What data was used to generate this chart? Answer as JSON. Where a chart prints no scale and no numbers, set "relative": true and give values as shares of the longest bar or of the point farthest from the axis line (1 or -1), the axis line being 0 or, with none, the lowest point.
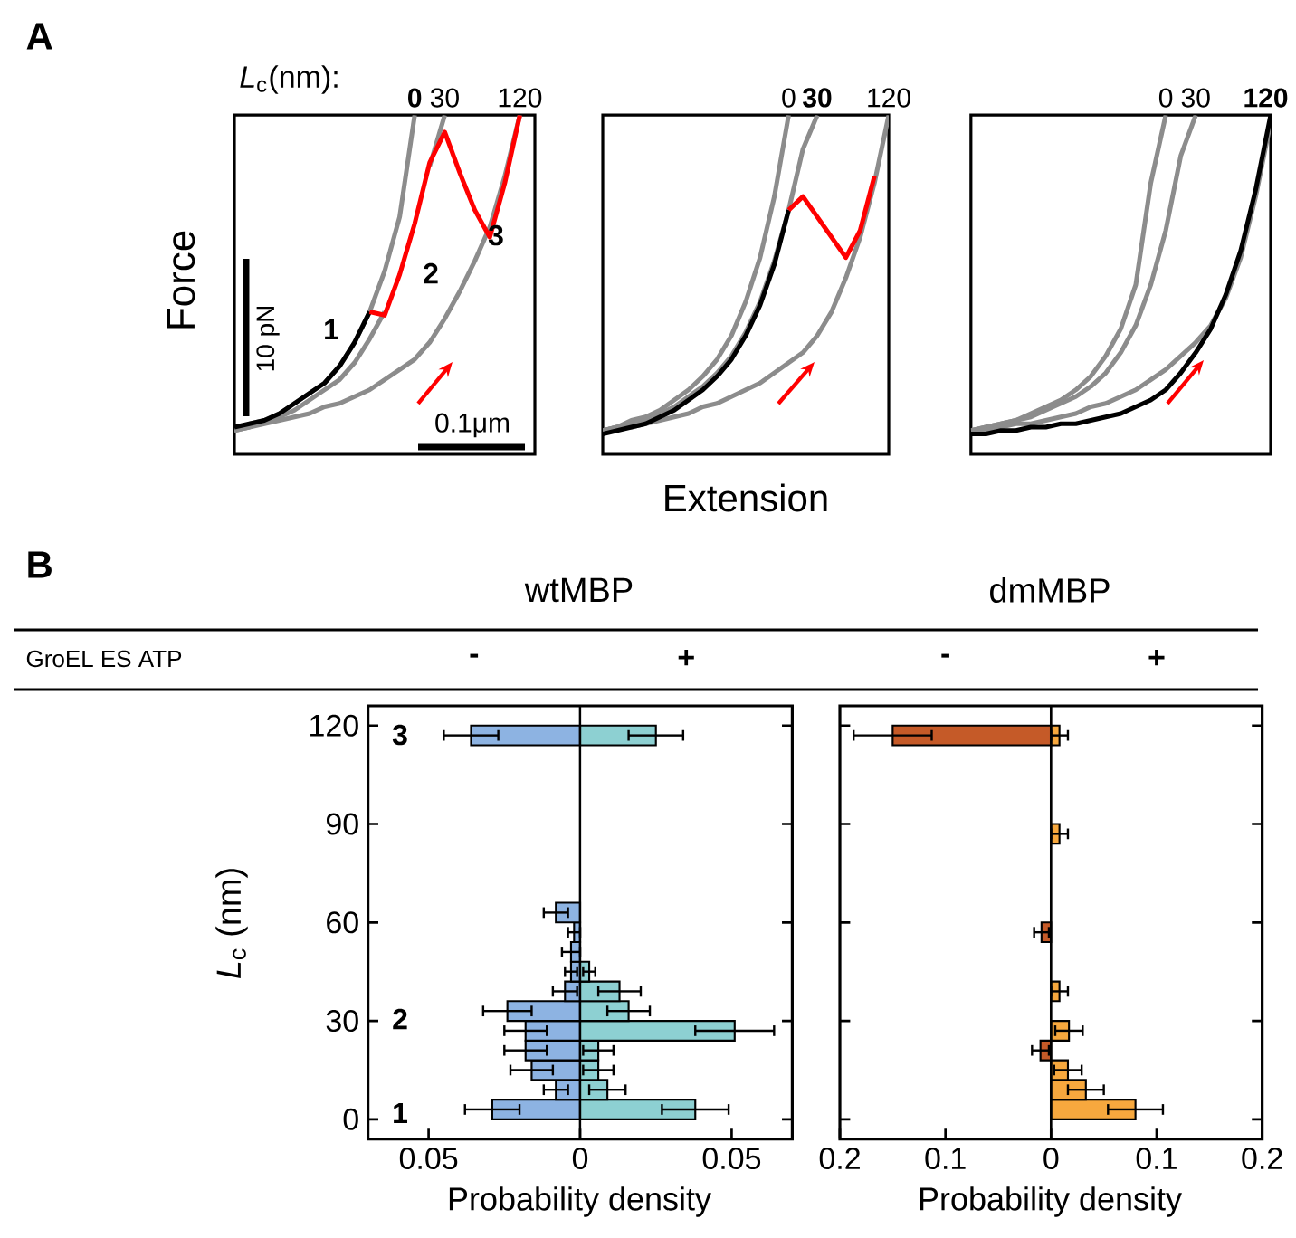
{
  "chart_data": [
    {
      "type": "line",
      "relative": true,
      "ylabel": "Force",
      "categories": [
        null,
        null,
        null,
        null,
        null,
        null,
        null,
        null,
        null,
        null,
        null,
        null,
        null,
        null,
        null,
        null,
        null,
        null,
        null,
        null,
        null
      ],
      "annotations": [
        "A",
        "*L*$_{c}$(nm):",
        "1",
        "2",
        "3",
        "10 pN",
        "0.1μm"
      ],
      "series": [
        {
          "name": "**0**",
          "color": "#8c8c8c",
          "values": [
            0.07,
            0.09,
            0.1,
            0.12,
            0.15,
            0.18,
            0.21,
            0.26,
            0.33,
            0.42,
            0.54,
            0.7,
            1.0,
            null,
            null,
            null,
            null,
            null,
            null,
            null,
            null
          ]
        },
        {
          "name": "30",
          "color": "#8c8c8c",
          "values": [
            0.07,
            0.08,
            0.1,
            0.11,
            0.13,
            0.16,
            0.19,
            0.22,
            0.27,
            0.34,
            0.42,
            null,
            null,
            0.85,
            1.0,
            null,
            null,
            null,
            null,
            null,
            null
          ]
        },
        {
          "name": "120",
          "color": "#8c8c8c",
          "values": [
            0.07,
            0.08,
            0.09,
            0.1,
            0.11,
            0.12,
            0.14,
            0.15,
            0.17,
            0.19,
            0.22,
            0.25,
            0.28,
            0.33,
            0.4,
            0.48,
            0.57,
            0.67,
            0.82,
            1.0,
            null
          ]
        },
        {
          "color": "#000000",
          "values": [
            0.08,
            0.09,
            0.1,
            0.12,
            0.15,
            0.18,
            0.21,
            0.26,
            0.33,
            0.42,
            null,
            null,
            null,
            null,
            null,
            null,
            null,
            null,
            null,
            null,
            null
          ]
        },
        {
          "color": "#ff0000",
          "values": [
            null,
            null,
            null,
            null,
            null,
            null,
            null,
            null,
            null,
            0.42,
            0.41,
            0.53,
            0.68,
            0.86,
            0.95,
            0.83,
            0.72,
            0.64,
            0.8,
            1.0,
            null
          ]
        }
      ]
    },
    {
      "type": "line",
      "relative": true,
      "xlabel": "Extension",
      "categories": [
        null,
        null,
        null,
        null,
        null,
        null,
        null,
        null,
        null,
        null,
        null,
        null,
        null,
        null,
        null,
        null,
        null,
        null,
        null,
        null,
        null
      ],
      "series": [
        {
          "name": "0",
          "color": "#8c8c8c",
          "values": [
            0.07,
            0.08,
            0.1,
            0.11,
            0.13,
            0.16,
            0.19,
            0.23,
            0.28,
            0.35,
            0.45,
            0.58,
            0.76,
            1.0,
            null,
            null,
            null,
            null,
            null,
            null,
            null
          ]
        },
        {
          "name": "**30**",
          "color": "#8c8c8c",
          "values": [
            0.07,
            0.08,
            0.09,
            0.1,
            0.12,
            0.14,
            0.17,
            0.2,
            0.24,
            0.29,
            0.36,
            0.45,
            0.57,
            0.72,
            0.9,
            1.0,
            null,
            null,
            null,
            null,
            null
          ]
        },
        {
          "name": "120",
          "color": "#8c8c8c",
          "values": [
            0.07,
            0.08,
            0.08,
            0.09,
            0.1,
            0.11,
            0.12,
            0.14,
            0.15,
            0.17,
            0.19,
            0.21,
            0.24,
            0.27,
            0.3,
            0.35,
            0.42,
            0.52,
            0.64,
            0.8,
            1.0
          ]
        },
        {
          "color": "#000000",
          "values": [
            0.06,
            0.07,
            0.08,
            0.09,
            0.11,
            0.13,
            0.16,
            0.19,
            0.23,
            0.28,
            0.35,
            0.44,
            0.56,
            0.72,
            null,
            null,
            null,
            null,
            null,
            null,
            null
          ]
        },
        {
          "color": "#ff0000",
          "values": [
            null,
            null,
            null,
            null,
            null,
            null,
            null,
            null,
            null,
            null,
            null,
            null,
            null,
            0.72,
            0.76,
            0.7,
            0.64,
            0.58,
            0.66,
            0.82,
            null
          ]
        }
      ]
    },
    {
      "type": "line",
      "relative": true,
      "categories": [
        null,
        null,
        null,
        null,
        null,
        null,
        null,
        null,
        null,
        null,
        null,
        null,
        null,
        null,
        null,
        null,
        null,
        null,
        null,
        null,
        null
      ],
      "series": [
        {
          "name": "0",
          "color": "#8c8c8c",
          "values": [
            0.07,
            0.08,
            0.09,
            0.1,
            0.12,
            0.14,
            0.16,
            0.19,
            0.23,
            0.29,
            0.37,
            0.5,
            0.8,
            1.0,
            null,
            null,
            null,
            null,
            null,
            null,
            null
          ]
        },
        {
          "name": "30",
          "color": "#8c8c8c",
          "values": [
            0.07,
            0.08,
            0.09,
            0.1,
            0.11,
            0.13,
            0.15,
            0.17,
            0.2,
            0.24,
            0.3,
            0.38,
            0.5,
            0.66,
            0.88,
            1.0,
            null,
            null,
            null,
            null,
            null
          ]
        },
        {
          "name": "**120**",
          "color": "#8c8c8c",
          "values": [
            0.07,
            0.07,
            0.08,
            0.09,
            0.09,
            0.1,
            0.11,
            0.12,
            0.14,
            0.15,
            0.17,
            0.19,
            0.22,
            0.25,
            0.29,
            0.33,
            0.38,
            0.46,
            0.58,
            0.76,
            0.98
          ]
        },
        {
          "color": "#000000",
          "values": [
            0.06,
            0.06,
            0.07,
            0.07,
            0.08,
            0.08,
            0.09,
            0.09,
            0.1,
            0.11,
            0.12,
            0.14,
            0.16,
            0.19,
            0.24,
            0.3,
            0.37,
            0.47,
            0.6,
            0.78,
            1.0
          ]
        }
      ]
    },
    {
      "type": "bar",
      "orientation": "horizontal",
      "title": "wtMBP",
      "xlabel": "Probability density",
      "ylabel": "*L*$_{c}$ (nm)",
      "x": [
        3,
        9,
        15,
        21,
        27,
        33,
        39,
        45,
        51,
        57,
        63,
        69,
        75,
        81,
        87,
        93,
        99,
        105,
        111,
        117
      ],
      "xlim": [
        -0.07,
        0.07
      ],
      "xticks": [
        {
          "value": -0.05,
          "label": "0.05"
        },
        0,
        0.05
      ],
      "ylim": [
        -6,
        126
      ],
      "yticks": [
        0,
        30,
        60,
        90,
        120
      ],
      "ref_lines": [
        {
          "axis": "x",
          "value": 0,
          "color": "#000000"
        }
      ],
      "annotations": [
        "B",
        "GroEL ES ATP",
        "-",
        "+",
        "1",
        "2",
        "3"
      ],
      "series": [
        {
          "color": "#8db3e2",
          "values": [
            -0.029,
            -0.008,
            -0.016,
            -0.018,
            -0.018,
            -0.024,
            -0.005,
            -0.003,
            -0.003,
            -0.002,
            -0.008,
            null,
            null,
            null,
            null,
            null,
            null,
            null,
            null,
            -0.036
          ],
          "errors": [
            0.009,
            0.004,
            0.007,
            0.007,
            0.007,
            0.008,
            0.004,
            0.002,
            0.003,
            0.002,
            0.004,
            null,
            null,
            null,
            null,
            null,
            null,
            null,
            null,
            0.009
          ]
        },
        {
          "color": "#8dd0d2",
          "values": [
            0.038,
            0.009,
            0.006,
            0.006,
            0.051,
            0.016,
            0.013,
            0.003,
            null,
            null,
            null,
            null,
            null,
            null,
            null,
            null,
            null,
            null,
            null,
            0.025
          ],
          "errors": [
            0.011,
            0.006,
            0.005,
            0.005,
            0.013,
            0.007,
            0.007,
            0.002,
            null,
            null,
            null,
            null,
            null,
            null,
            null,
            null,
            null,
            null,
            null,
            0.009
          ]
        }
      ]
    },
    {
      "type": "bar",
      "orientation": "horizontal",
      "title": "dmMBP",
      "xlabel": "Probability density",
      "tick_labels": "x",
      "x": [
        3,
        9,
        15,
        21,
        27,
        33,
        39,
        45,
        51,
        57,
        63,
        69,
        75,
        81,
        87,
        93,
        99,
        105,
        111,
        117
      ],
      "xlim": [
        -0.2,
        0.2
      ],
      "xticks": [
        {
          "value": -0.2,
          "label": "0.2"
        },
        {
          "value": -0.1,
          "label": "0.1"
        },
        0,
        0.1,
        0.2
      ],
      "ylim": [
        -6,
        126
      ],
      "yticks": [
        0,
        30,
        60,
        90,
        120
      ],
      "ref_lines": [
        {
          "axis": "x",
          "value": 0,
          "color": "#000000"
        }
      ],
      "annotations": [
        "-",
        "+"
      ],
      "series": [
        {
          "color": "#c55a28",
          "values": [
            null,
            null,
            null,
            -0.01,
            null,
            null,
            null,
            null,
            null,
            -0.009,
            null,
            null,
            null,
            null,
            null,
            null,
            null,
            null,
            null,
            -0.15
          ],
          "errors": [
            null,
            null,
            null,
            0.008,
            null,
            null,
            null,
            null,
            null,
            0.007,
            null,
            null,
            null,
            null,
            null,
            null,
            null,
            null,
            null,
            0.037
          ]
        },
        {
          "color": "#f7a83e",
          "values": [
            0.08,
            0.033,
            0.016,
            null,
            0.017,
            null,
            0.008,
            null,
            null,
            null,
            null,
            null,
            null,
            null,
            0.008,
            null,
            null,
            null,
            null,
            0.008
          ],
          "errors": [
            0.026,
            0.017,
            0.013,
            null,
            0.013,
            null,
            0.008,
            null,
            null,
            null,
            null,
            null,
            null,
            null,
            0.008,
            null,
            null,
            null,
            null,
            0.008
          ]
        }
      ]
    }
  ]
}
